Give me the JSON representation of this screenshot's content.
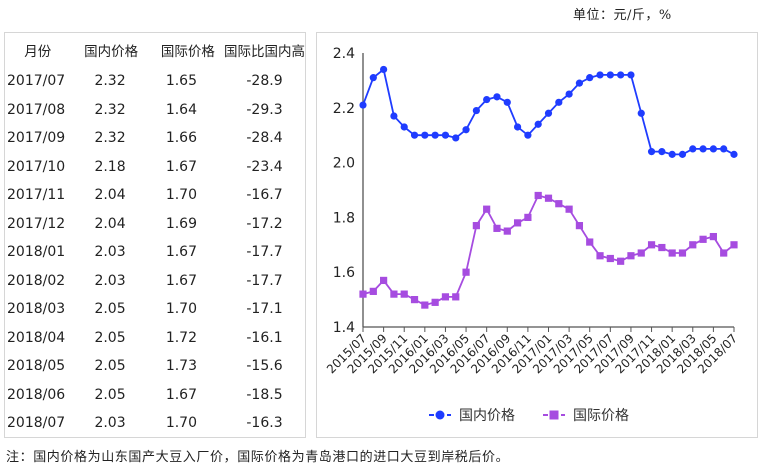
{
  "unit_label": "单位：元/斤，%",
  "table": {
    "headers": [
      "月份",
      "国内价格",
      "国际价格",
      "国际比国内高"
    ],
    "rows": [
      [
        "2017/07",
        "2.32",
        "1.65",
        "-28.9"
      ],
      [
        "2017/08",
        "2.32",
        "1.64",
        "-29.3"
      ],
      [
        "2017/09",
        "2.32",
        "1.66",
        "-28.4"
      ],
      [
        "2017/10",
        "2.18",
        "1.67",
        "-23.4"
      ],
      [
        "2017/11",
        "2.04",
        "1.70",
        "-16.7"
      ],
      [
        "2017/12",
        "2.04",
        "1.69",
        "-17.2"
      ],
      [
        "2018/01",
        "2.03",
        "1.67",
        "-17.7"
      ],
      [
        "2018/02",
        "2.03",
        "1.67",
        "-17.7"
      ],
      [
        "2018/03",
        "2.05",
        "1.70",
        "-17.1"
      ],
      [
        "2018/04",
        "2.05",
        "1.72",
        "-16.1"
      ],
      [
        "2018/05",
        "2.05",
        "1.73",
        "-15.6"
      ],
      [
        "2018/06",
        "2.05",
        "1.67",
        "-18.5"
      ],
      [
        "2018/07",
        "2.03",
        "1.70",
        "-16.3"
      ]
    ]
  },
  "note": "注：国内价格为山东国产大豆入厂价，国际价格为青岛港口的进口大豆到岸税后价。",
  "colors": {
    "domestic": "#1f3cff",
    "international": "#a64ce0",
    "axis": "#555555"
  },
  "chart_data": {
    "type": "line",
    "title": "",
    "xlabel": "",
    "ylabel": "",
    "ylim": [
      1.4,
      2.4
    ],
    "yticks": [
      "1.4",
      "1.6",
      "1.8",
      "2.0",
      "2.2",
      "2.4"
    ],
    "x": [
      "2015/07",
      "2015/08",
      "2015/09",
      "2015/10",
      "2015/11",
      "2015/12",
      "2016/01",
      "2016/02",
      "2016/03",
      "2016/04",
      "2016/05",
      "2016/06",
      "2016/07",
      "2016/08",
      "2016/09",
      "2016/10",
      "2016/11",
      "2016/12",
      "2017/01",
      "2017/02",
      "2017/03",
      "2017/04",
      "2017/05",
      "2017/06",
      "2017/07",
      "2017/08",
      "2017/09",
      "2017/10",
      "2017/11",
      "2017/12",
      "2018/01",
      "2018/02",
      "2018/03",
      "2018/04",
      "2018/05",
      "2018/06",
      "2018/07"
    ],
    "xtick_labels": [
      "2015/07",
      "2015/09",
      "2015/11",
      "2016/01",
      "2016/03",
      "2016/05",
      "2016/07",
      "2016/09",
      "2016/11",
      "2017/01",
      "2017/03",
      "2017/05",
      "2017/07",
      "2017/09",
      "2017/11",
      "2018/01",
      "2018/03",
      "2018/05",
      "2018/07"
    ],
    "grid": false,
    "legend_position": "bottom",
    "series": [
      {
        "name": "国内价格",
        "marker": "circle",
        "values": [
          2.21,
          2.31,
          2.34,
          2.17,
          2.13,
          2.1,
          2.1,
          2.1,
          2.1,
          2.09,
          2.12,
          2.19,
          2.23,
          2.24,
          2.22,
          2.13,
          2.1,
          2.14,
          2.18,
          2.22,
          2.25,
          2.29,
          2.31,
          2.32,
          2.32,
          2.32,
          2.32,
          2.18,
          2.04,
          2.04,
          2.03,
          2.03,
          2.05,
          2.05,
          2.05,
          2.05,
          2.03
        ]
      },
      {
        "name": "国际价格",
        "marker": "square",
        "values": [
          1.52,
          1.53,
          1.57,
          1.52,
          1.52,
          1.5,
          1.48,
          1.49,
          1.51,
          1.51,
          1.6,
          1.77,
          1.83,
          1.76,
          1.75,
          1.78,
          1.8,
          1.88,
          1.87,
          1.85,
          1.83,
          1.77,
          1.71,
          1.66,
          1.65,
          1.64,
          1.66,
          1.67,
          1.7,
          1.69,
          1.67,
          1.67,
          1.7,
          1.72,
          1.73,
          1.67,
          1.7
        ]
      }
    ]
  }
}
